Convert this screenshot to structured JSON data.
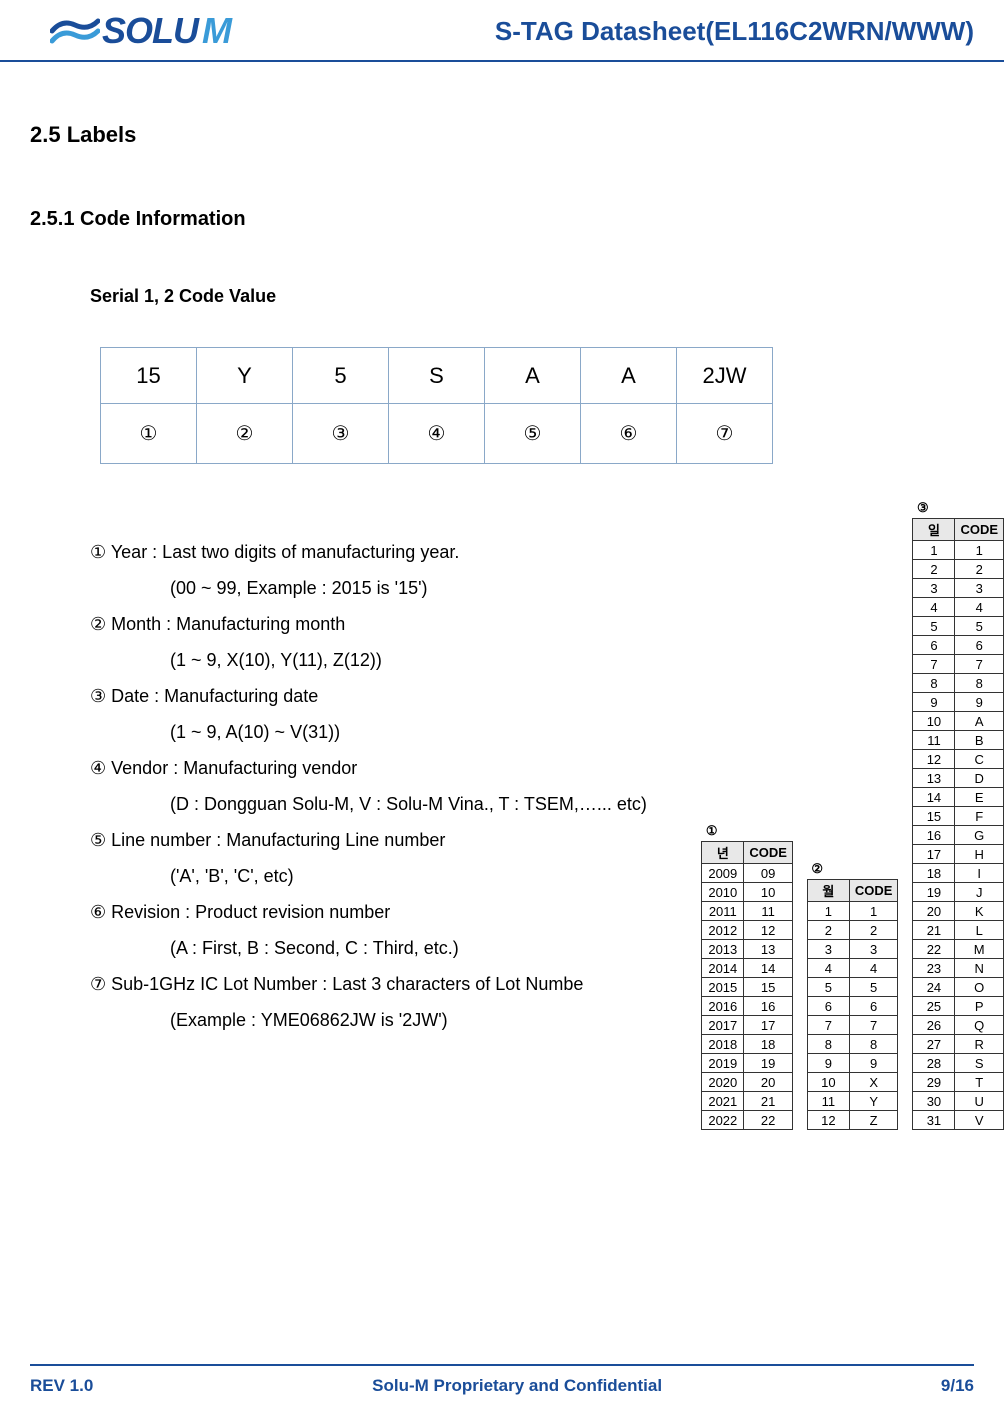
{
  "header": {
    "logo_text1": "SOLU",
    "logo_text2": "M",
    "doc_title": "S-TAG Datasheet(EL116C2WRN/WWW)"
  },
  "sections": {
    "h2": "2.5 Labels",
    "h3": "2.5.1 Code Information",
    "h4": "Serial 1, 2 Code Value"
  },
  "code_table": {
    "row1": [
      "15",
      "Y",
      "5",
      "S",
      "A",
      "A",
      "2JW"
    ],
    "row2": [
      "①",
      "②",
      "③",
      "④",
      "⑤",
      "⑥",
      "⑦"
    ]
  },
  "definitions": [
    {
      "main": "① Year : Last two digits of manufacturing year.",
      "sub": "(00 ~ 99, Example : 2015 is '15')"
    },
    {
      "main": "② Month : Manufacturing month",
      "sub": "(1 ~ 9, X(10), Y(11), Z(12))"
    },
    {
      "main": "③ Date : Manufacturing date",
      "sub": "(1 ~ 9, A(10) ~ V(31))"
    },
    {
      "main": "④ Vendor : Manufacturing vendor",
      "sub": "(D : Dongguan Solu-M, V : Solu-M Vina., T : TSEM,…... etc)"
    },
    {
      "main": "⑤ Line number : Manufacturing Line number",
      "sub": "('A', 'B', 'C', etc)"
    },
    {
      "main": "⑥ Revision : Product revision number",
      "sub": "(A : First, B : Second, C : Third, etc.)"
    },
    {
      "main": "⑦ Sub-1GHz IC Lot Number : Last 3 characters of Lot Numbe",
      "sub": "(Example : YME06862JW is '2JW')"
    }
  ],
  "table1": {
    "num": "①",
    "headers": [
      "년",
      "CODE"
    ],
    "rows": [
      [
        "2009",
        "09"
      ],
      [
        "2010",
        "10"
      ],
      [
        "2011",
        "11"
      ],
      [
        "2012",
        "12"
      ],
      [
        "2013",
        "13"
      ],
      [
        "2014",
        "14"
      ],
      [
        "2015",
        "15"
      ],
      [
        "2016",
        "16"
      ],
      [
        "2017",
        "17"
      ],
      [
        "2018",
        "18"
      ],
      [
        "2019",
        "19"
      ],
      [
        "2020",
        "20"
      ],
      [
        "2021",
        "21"
      ],
      [
        "2022",
        "22"
      ]
    ]
  },
  "table2": {
    "num": "②",
    "headers": [
      "월",
      "CODE"
    ],
    "rows": [
      [
        "1",
        "1"
      ],
      [
        "2",
        "2"
      ],
      [
        "3",
        "3"
      ],
      [
        "4",
        "4"
      ],
      [
        "5",
        "5"
      ],
      [
        "6",
        "6"
      ],
      [
        "7",
        "7"
      ],
      [
        "8",
        "8"
      ],
      [
        "9",
        "9"
      ],
      [
        "10",
        "X"
      ],
      [
        "11",
        "Y"
      ],
      [
        "12",
        "Z"
      ]
    ]
  },
  "table3": {
    "num": "③",
    "headers": [
      "일",
      "CODE"
    ],
    "rows": [
      [
        "1",
        "1"
      ],
      [
        "2",
        "2"
      ],
      [
        "3",
        "3"
      ],
      [
        "4",
        "4"
      ],
      [
        "5",
        "5"
      ],
      [
        "6",
        "6"
      ],
      [
        "7",
        "7"
      ],
      [
        "8",
        "8"
      ],
      [
        "9",
        "9"
      ],
      [
        "10",
        "A"
      ],
      [
        "11",
        "B"
      ],
      [
        "12",
        "C"
      ],
      [
        "13",
        "D"
      ],
      [
        "14",
        "E"
      ],
      [
        "15",
        "F"
      ],
      [
        "16",
        "G"
      ],
      [
        "17",
        "H"
      ],
      [
        "18",
        "I"
      ],
      [
        "19",
        "J"
      ],
      [
        "20",
        "K"
      ],
      [
        "21",
        "L"
      ],
      [
        "22",
        "M"
      ],
      [
        "23",
        "N"
      ],
      [
        "24",
        "O"
      ],
      [
        "25",
        "P"
      ],
      [
        "26",
        "Q"
      ],
      [
        "27",
        "R"
      ],
      [
        "28",
        "S"
      ],
      [
        "29",
        "T"
      ],
      [
        "30",
        "U"
      ],
      [
        "31",
        "V"
      ]
    ]
  },
  "footer": {
    "rev": "REV 1.0",
    "confidential": "Solu-M Proprietary and Confidential",
    "page": "9/16"
  }
}
